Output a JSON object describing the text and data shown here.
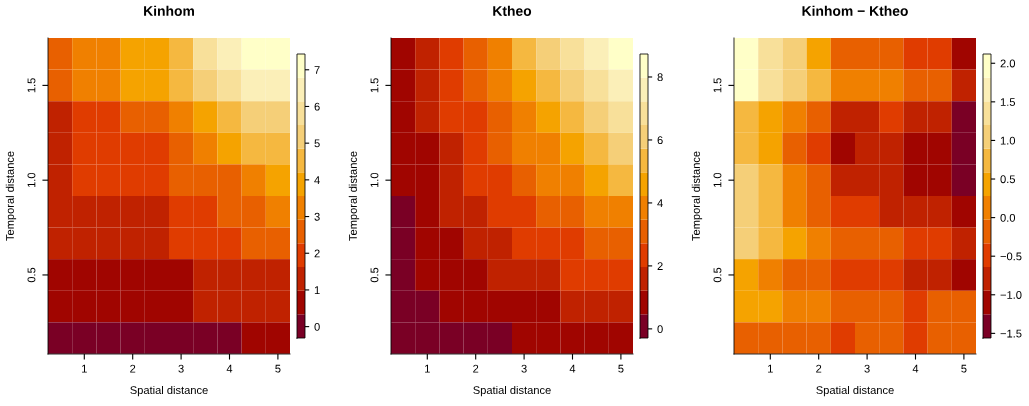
{
  "chart_data": [
    {
      "type": "heatmap",
      "title": "Kinhom",
      "xlabel": "Spatial distance",
      "ylabel": "Temporal distance",
      "x": [
        0.5,
        1.0,
        1.5,
        2.0,
        2.5,
        3.0,
        3.5,
        4.0,
        4.5,
        5.0
      ],
      "y": [
        1.667,
        1.5,
        1.333,
        1.167,
        1.0,
        0.833,
        0.667,
        0.5,
        0.333,
        0.167
      ],
      "xlim": [
        0.25,
        5.25
      ],
      "ylim": [
        0.083,
        1.75
      ],
      "xticks": [
        1,
        2,
        3,
        4,
        5
      ],
      "yticks": [
        {
          "value": 0.5,
          "label": "0.5"
        },
        {
          "value": 1,
          "label": "1.0"
        },
        {
          "value": 1.5,
          "label": "1.5"
        }
      ],
      "clim": [
        -0.31,
        7.43
      ],
      "cticks": [
        0,
        1,
        2,
        3,
        4,
        5,
        6,
        7
      ],
      "cells": [
        [
          2.6,
          3.2,
          3.2,
          3.9,
          3.9,
          4.5,
          5.8,
          6.5,
          7.1,
          7.1
        ],
        [
          2.6,
          3.2,
          3.2,
          3.9,
          3.9,
          4.5,
          5.2,
          5.8,
          6.5,
          6.5
        ],
        [
          1.3,
          1.9,
          1.9,
          2.6,
          2.6,
          3.2,
          3.9,
          4.5,
          5.2,
          5.2
        ],
        [
          1.3,
          1.9,
          1.9,
          1.9,
          1.9,
          2.6,
          3.2,
          3.9,
          4.5,
          4.5
        ],
        [
          1.3,
          1.9,
          1.9,
          1.9,
          1.9,
          2.6,
          2.6,
          2.6,
          3.2,
          3.9
        ],
        [
          1.3,
          1.3,
          1.3,
          1.3,
          1.3,
          1.9,
          1.9,
          2.6,
          2.6,
          3.2
        ],
        [
          1.3,
          1.3,
          1.3,
          1.3,
          1.3,
          1.9,
          1.9,
          1.9,
          2.6,
          2.6
        ],
        [
          0.7,
          0.7,
          0.7,
          0.7,
          0.7,
          0.7,
          1.3,
          1.3,
          1.3,
          1.3
        ],
        [
          0.7,
          0.7,
          0.7,
          0.7,
          0.7,
          0.7,
          1.3,
          1.3,
          1.3,
          1.3
        ],
        [
          0.0,
          0.0,
          0.0,
          0.0,
          0.0,
          0.0,
          0.0,
          0.0,
          0.7,
          0.7
        ]
      ]
    },
    {
      "type": "heatmap",
      "title": "Ktheo",
      "xlabel": "Spatial distance",
      "ylabel": "Temporal distance",
      "x": [
        0.5,
        1.0,
        1.5,
        2.0,
        2.5,
        3.0,
        3.5,
        4.0,
        4.5,
        5.0
      ],
      "y": [
        1.667,
        1.5,
        1.333,
        1.167,
        1.0,
        0.833,
        0.667,
        0.5,
        0.333,
        0.167
      ],
      "xlim": [
        0.25,
        5.25
      ],
      "ylim": [
        0.083,
        1.75
      ],
      "xticks": [
        1,
        2,
        3,
        4,
        5
      ],
      "yticks": [
        {
          "value": 0.5,
          "label": "0.5"
        },
        {
          "value": 1,
          "label": "1.0"
        },
        {
          "value": 1.5,
          "label": "1.5"
        }
      ],
      "clim": [
        -0.29,
        8.73
      ],
      "cticks": [
        0,
        2,
        4,
        6,
        8
      ],
      "cells": [
        [
          0.8,
          1.6,
          2.3,
          3.1,
          3.8,
          5.4,
          6.1,
          6.9,
          7.6,
          8.4
        ],
        [
          0.8,
          1.6,
          2.3,
          3.1,
          3.8,
          4.6,
          5.4,
          6.1,
          6.9,
          7.6
        ],
        [
          0.8,
          1.6,
          2.3,
          2.3,
          3.1,
          3.8,
          4.6,
          5.4,
          6.1,
          6.9
        ],
        [
          0.8,
          0.8,
          1.6,
          2.3,
          3.1,
          3.8,
          3.8,
          4.6,
          5.4,
          6.1
        ],
        [
          0.8,
          0.8,
          1.6,
          2.3,
          2.3,
          3.1,
          3.8,
          3.8,
          4.6,
          5.4
        ],
        [
          0.1,
          0.8,
          1.6,
          1.6,
          2.3,
          2.3,
          3.1,
          3.1,
          3.8,
          3.8
        ],
        [
          0.1,
          0.8,
          0.8,
          1.6,
          1.6,
          2.3,
          2.3,
          2.3,
          3.1,
          3.1
        ],
        [
          0.1,
          0.8,
          0.8,
          0.8,
          1.6,
          1.6,
          1.6,
          2.3,
          2.3,
          2.3
        ],
        [
          0.1,
          0.1,
          0.8,
          0.8,
          0.8,
          0.8,
          0.8,
          1.6,
          1.6,
          1.6
        ],
        [
          0.1,
          0.1,
          0.1,
          0.1,
          0.1,
          0.8,
          0.8,
          0.8,
          0.8,
          0.8
        ]
      ]
    },
    {
      "type": "heatmap",
      "title": "Kinhom − Ktheo",
      "xlabel": "Spatial distance",
      "ylabel": "Temporal distance",
      "x": [
        0.5,
        1.0,
        1.5,
        2.0,
        2.5,
        3.0,
        3.5,
        4.0,
        4.5,
        5.0
      ],
      "y": [
        1.667,
        1.5,
        1.333,
        1.167,
        1.0,
        0.833,
        0.667,
        0.5,
        0.333,
        0.167
      ],
      "xlim": [
        0.25,
        5.25
      ],
      "ylim": [
        0.083,
        1.75
      ],
      "xticks": [
        1,
        2,
        3,
        4,
        5
      ],
      "yticks": [
        {
          "value": 0.5,
          "label": "0.5"
        },
        {
          "value": 1,
          "label": "1.0"
        },
        {
          "value": 1.5,
          "label": "1.5"
        }
      ],
      "clim": [
        -1.56,
        2.12
      ],
      "cticks": [
        {
          "value": -1.5,
          "label": "−1.5"
        },
        {
          "value": -1,
          "label": "−1.0"
        },
        {
          "value": -0.5,
          "label": "−0.5"
        },
        {
          "value": 0,
          "label": "0.0"
        },
        {
          "value": 0.5,
          "label": "0.5"
        },
        {
          "value": 1,
          "label": "1.0"
        },
        {
          "value": 1.5,
          "label": "1.5"
        },
        {
          "value": 2,
          "label": "2.0"
        }
      ],
      "cells": [
        [
          1.97,
          1.36,
          1.05,
          0.43,
          -0.18,
          -0.18,
          -0.18,
          -0.49,
          -0.49,
          -1.1
        ],
        [
          1.97,
          1.36,
          1.05,
          0.74,
          0.13,
          0.13,
          0.13,
          -0.18,
          -0.18,
          -0.79
        ],
        [
          0.74,
          0.43,
          0.13,
          -0.18,
          -0.79,
          -0.79,
          -0.49,
          -0.79,
          -0.79,
          -1.41
        ],
        [
          0.74,
          0.43,
          -0.18,
          -0.49,
          -1.1,
          -0.79,
          -0.79,
          -1.1,
          -1.1,
          -1.41
        ],
        [
          1.05,
          0.74,
          0.13,
          -0.18,
          -0.79,
          -0.79,
          -0.79,
          -1.1,
          -1.1,
          -1.41
        ],
        [
          1.05,
          0.74,
          0.13,
          -0.18,
          -0.49,
          -0.49,
          -0.79,
          -0.79,
          -0.79,
          -1.1
        ],
        [
          1.05,
          0.74,
          0.43,
          0.13,
          -0.18,
          -0.18,
          -0.18,
          -0.49,
          -0.49,
          -0.79
        ],
        [
          0.43,
          0.13,
          -0.18,
          -0.18,
          -0.49,
          -0.49,
          -0.49,
          -0.79,
          -0.79,
          -1.1
        ],
        [
          0.43,
          0.43,
          0.13,
          0.13,
          -0.18,
          -0.18,
          -0.18,
          -0.49,
          -0.18,
          -0.18
        ],
        [
          -0.18,
          -0.18,
          -0.18,
          -0.18,
          -0.49,
          -0.18,
          -0.18,
          -0.49,
          -0.18,
          -0.18
        ]
      ]
    }
  ]
}
